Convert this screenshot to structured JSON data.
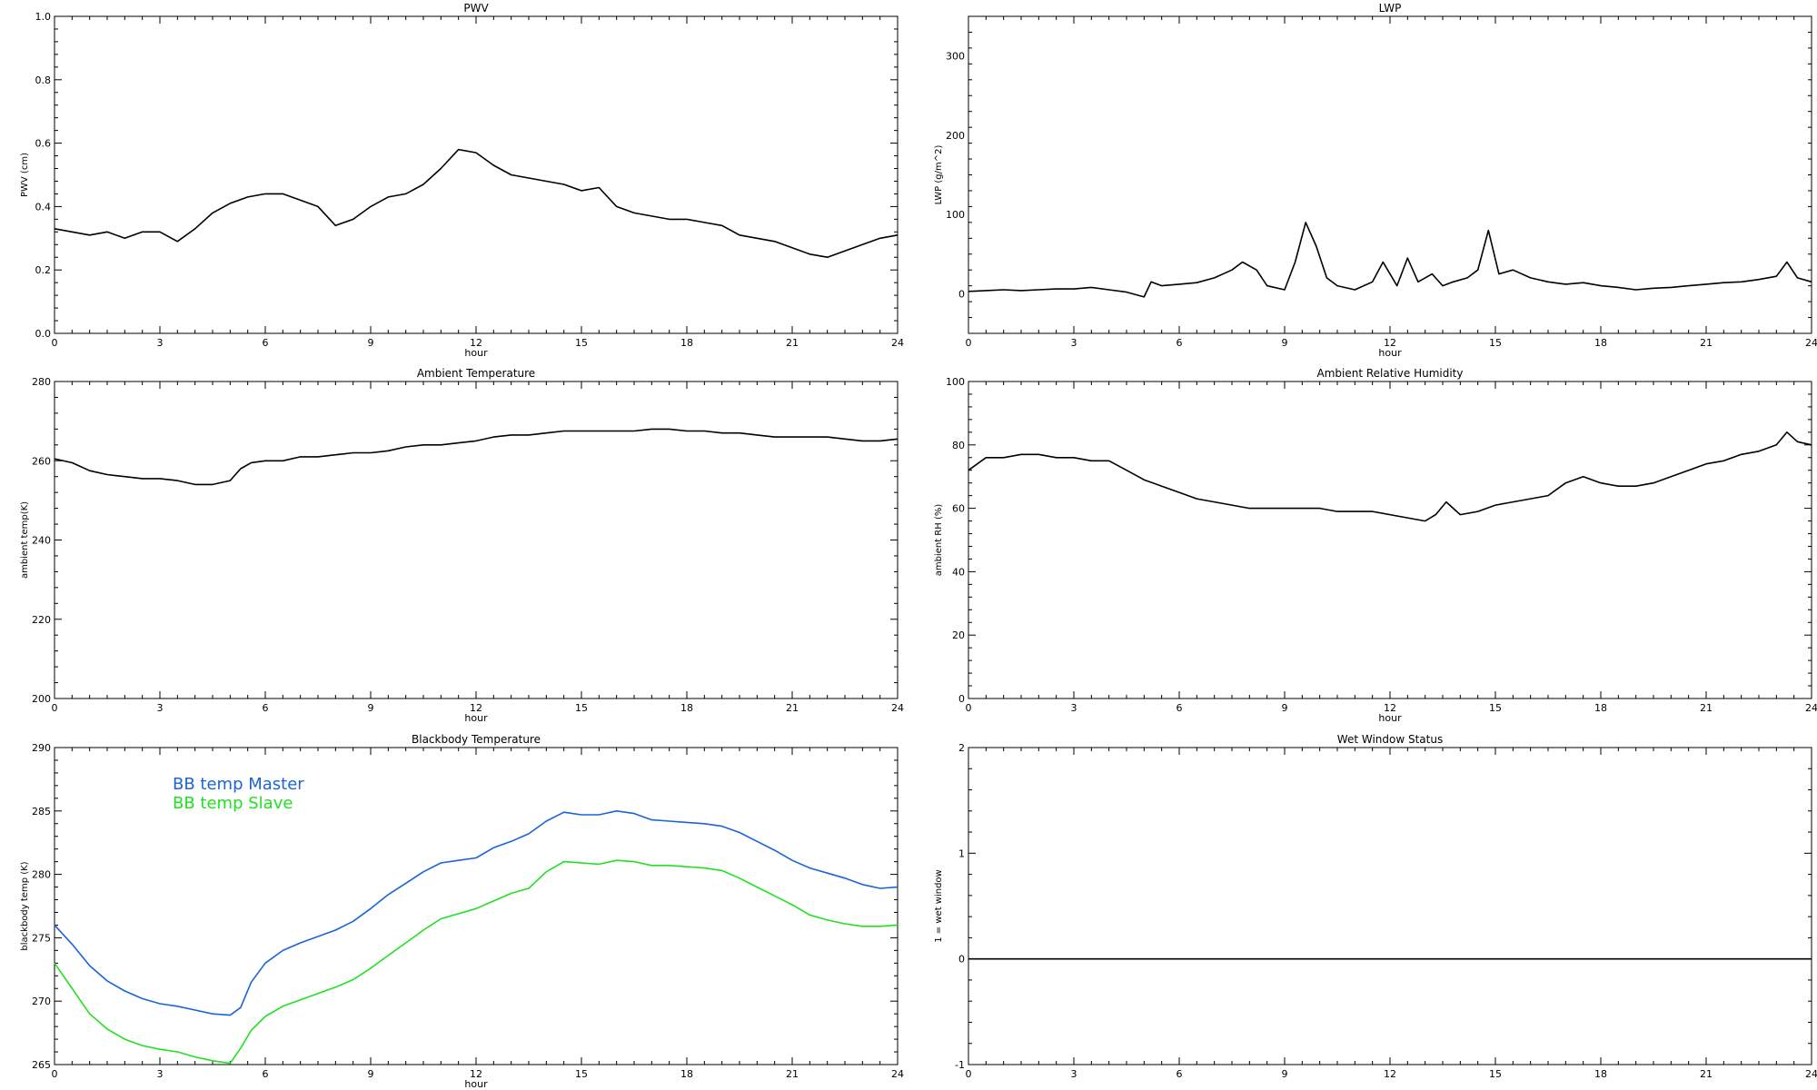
{
  "chart_data": [
    {
      "type": "line",
      "title": "PWV",
      "xlabel": "hour",
      "ylabel": "PWV (cm)",
      "xlim": [
        0,
        24
      ],
      "ylim": [
        0.0,
        1.0
      ],
      "xticks": [
        0,
        3,
        6,
        9,
        12,
        15,
        18,
        21,
        24
      ],
      "yticks": [
        "0.0",
        "0.2",
        "0.4",
        "0.6",
        "0.8",
        "1.0"
      ],
      "series": [
        {
          "color": "#000000",
          "x": [
            0,
            0.5,
            1,
            1.5,
            2,
            2.5,
            3,
            3.5,
            4,
            4.5,
            5,
            5.5,
            6,
            6.5,
            7,
            7.5,
            8,
            8.5,
            9,
            9.5,
            10,
            10.5,
            11,
            11.5,
            12,
            12.5,
            13,
            13.5,
            14,
            14.5,
            15,
            15.5,
            16,
            16.5,
            17,
            17.5,
            18,
            18.5,
            19,
            19.5,
            20,
            20.5,
            21,
            21.5,
            22,
            22.5,
            23,
            23.5,
            24
          ],
          "values": [
            0.33,
            0.32,
            0.31,
            0.32,
            0.3,
            0.32,
            0.32,
            0.29,
            0.33,
            0.38,
            0.41,
            0.43,
            0.44,
            0.44,
            0.42,
            0.4,
            0.34,
            0.36,
            0.4,
            0.43,
            0.44,
            0.47,
            0.52,
            0.58,
            0.57,
            0.53,
            0.5,
            0.49,
            0.48,
            0.47,
            0.45,
            0.46,
            0.4,
            0.38,
            0.37,
            0.36,
            0.36,
            0.35,
            0.34,
            0.31,
            0.3,
            0.29,
            0.27,
            0.25,
            0.24,
            0.26,
            0.28,
            0.3,
            0.31
          ]
        }
      ]
    },
    {
      "type": "line",
      "title": "LWP",
      "xlabel": "hour",
      "ylabel": "LWP (g/m^2)",
      "xlim": [
        0,
        24
      ],
      "ylim": [
        -50,
        350
      ],
      "xticks": [
        0,
        3,
        6,
        9,
        12,
        15,
        18,
        21,
        24
      ],
      "yticks": [
        "0",
        "100",
        "200",
        "300"
      ],
      "series": [
        {
          "color": "#000000",
          "x": [
            0,
            0.5,
            1,
            1.5,
            2,
            2.5,
            3,
            3.5,
            4,
            4.5,
            5,
            5.2,
            5.5,
            6,
            6.5,
            7,
            7.5,
            7.8,
            8.2,
            8.5,
            9,
            9.3,
            9.6,
            9.9,
            10.2,
            10.5,
            11,
            11.5,
            11.8,
            12.2,
            12.5,
            12.8,
            13.2,
            13.5,
            13.8,
            14.2,
            14.5,
            14.8,
            15.1,
            15.5,
            16,
            16.5,
            17,
            17.5,
            18,
            18.5,
            19,
            19.5,
            20,
            20.5,
            21,
            21.5,
            22,
            22.5,
            23,
            23.3,
            23.6,
            24
          ],
          "values": [
            3,
            4,
            5,
            4,
            5,
            6,
            6,
            8,
            5,
            2,
            -4,
            15,
            10,
            12,
            14,
            20,
            30,
            40,
            30,
            10,
            5,
            40,
            90,
            60,
            20,
            10,
            5,
            15,
            40,
            10,
            45,
            15,
            25,
            10,
            15,
            20,
            30,
            80,
            25,
            30,
            20,
            15,
            12,
            14,
            10,
            8,
            5,
            7,
            8,
            10,
            12,
            14,
            15,
            18,
            22,
            40,
            20,
            15
          ]
        }
      ]
    },
    {
      "type": "line",
      "title": "Ambient Temperature",
      "xlabel": "hour",
      "ylabel": "ambient temp(K)",
      "xlim": [
        0,
        24
      ],
      "ylim": [
        200,
        280
      ],
      "xticks": [
        0,
        3,
        6,
        9,
        12,
        15,
        18,
        21,
        24
      ],
      "yticks": [
        "200",
        "220",
        "240",
        "260",
        "280"
      ],
      "series": [
        {
          "color": "#000000",
          "x": [
            0,
            0.5,
            1,
            1.5,
            2,
            2.5,
            3,
            3.5,
            4,
            4.5,
            5,
            5.3,
            5.6,
            6,
            6.5,
            7,
            7.5,
            8,
            8.5,
            9,
            9.5,
            10,
            10.5,
            11,
            11.5,
            12,
            12.5,
            13,
            13.5,
            14,
            14.5,
            15,
            15.5,
            16,
            16.5,
            17,
            17.5,
            18,
            18.5,
            19,
            19.5,
            20,
            20.5,
            21,
            21.5,
            22,
            22.5,
            23,
            23.5,
            24
          ],
          "values": [
            260.5,
            259.5,
            257.5,
            256.5,
            256,
            255.5,
            255.5,
            255,
            254,
            254,
            255,
            258,
            259.5,
            260,
            260,
            261,
            261,
            261.5,
            262,
            262,
            262.5,
            263.5,
            264,
            264,
            264.5,
            265,
            266,
            266.5,
            266.5,
            267,
            267.5,
            267.5,
            267.5,
            267.5,
            267.5,
            268,
            268,
            267.5,
            267.5,
            267,
            267,
            266.5,
            266,
            266,
            266,
            266,
            265.5,
            265,
            265,
            265.5
          ]
        }
      ]
    },
    {
      "type": "line",
      "title": "Ambient Relative Humidity",
      "xlabel": "hour",
      "ylabel": "ambient RH (%)",
      "xlim": [
        0,
        24
      ],
      "ylim": [
        0,
        100
      ],
      "xticks": [
        0,
        3,
        6,
        9,
        12,
        15,
        18,
        21,
        24
      ],
      "yticks": [
        "0",
        "20",
        "40",
        "60",
        "80",
        "100"
      ],
      "series": [
        {
          "color": "#000000",
          "x": [
            0,
            0.5,
            1,
            1.5,
            2,
            2.5,
            3,
            3.5,
            4,
            4.5,
            5,
            5.5,
            6,
            6.5,
            7,
            7.5,
            8,
            8.5,
            9,
            9.5,
            10,
            10.5,
            11,
            11.5,
            12,
            12.5,
            13,
            13.3,
            13.6,
            14,
            14.5,
            15,
            15.5,
            16,
            16.5,
            17,
            17.5,
            18,
            18.5,
            19,
            19.5,
            20,
            20.5,
            21,
            21.5,
            22,
            22.5,
            23,
            23.3,
            23.6,
            24
          ],
          "values": [
            72,
            76,
            76,
            77,
            77,
            76,
            76,
            75,
            75,
            72,
            69,
            67,
            65,
            63,
            62,
            61,
            60,
            60,
            60,
            60,
            60,
            59,
            59,
            59,
            58,
            57,
            56,
            58,
            62,
            58,
            59,
            61,
            62,
            63,
            64,
            68,
            70,
            68,
            67,
            67,
            68,
            70,
            72,
            74,
            75,
            77,
            78,
            80,
            84,
            81,
            80
          ]
        }
      ]
    },
    {
      "type": "line",
      "title": "Blackbody Temperature",
      "xlabel": "hour",
      "ylabel": "blackbody temp (K)",
      "xlim": [
        0,
        24
      ],
      "ylim": [
        265,
        290
      ],
      "xticks": [
        0,
        3,
        6,
        9,
        12,
        15,
        18,
        21,
        24
      ],
      "yticks": [
        "265",
        "270",
        "275",
        "280",
        "285",
        "290"
      ],
      "legend": "top-left",
      "series": [
        {
          "name": "BB temp Master",
          "color": "#1a64d8",
          "x": [
            0,
            0.5,
            1,
            1.5,
            2,
            2.5,
            3,
            3.5,
            4,
            4.5,
            5,
            5.3,
            5.6,
            6,
            6.5,
            7,
            7.5,
            8,
            8.5,
            9,
            9.5,
            10,
            10.5,
            11,
            11.5,
            12,
            12.5,
            13,
            13.5,
            14,
            14.5,
            15,
            15.5,
            16,
            16.5,
            17,
            17.5,
            18,
            18.5,
            19,
            19.5,
            20,
            20.5,
            21,
            21.5,
            22,
            22.5,
            23,
            23.5,
            24
          ],
          "values": [
            276,
            274.5,
            272.8,
            271.6,
            270.8,
            270.2,
            269.8,
            269.6,
            269.3,
            269,
            268.9,
            269.5,
            271.5,
            273,
            274,
            274.6,
            275.1,
            275.6,
            276.3,
            277.3,
            278.4,
            279.3,
            280.2,
            280.9,
            281.1,
            281.3,
            282.1,
            282.6,
            283.2,
            284.2,
            284.9,
            284.7,
            284.7,
            285,
            284.8,
            284.3,
            284.2,
            284.1,
            284.0,
            283.8,
            283.3,
            282.6,
            281.9,
            281.1,
            280.5,
            280.1,
            279.7,
            279.2,
            278.9,
            279.0
          ]
        },
        {
          "name": "BB temp Slave",
          "color": "#22e022",
          "x": [
            0,
            0.5,
            1,
            1.5,
            2,
            2.5,
            3,
            3.5,
            4,
            4.5,
            5,
            5.3,
            5.6,
            6,
            6.5,
            7,
            7.5,
            8,
            8.5,
            9,
            9.5,
            10,
            10.5,
            11,
            11.5,
            12,
            12.5,
            13,
            13.5,
            14,
            14.5,
            15,
            15.5,
            16,
            16.5,
            17,
            17.5,
            18,
            18.5,
            19,
            19.5,
            20,
            20.5,
            21,
            21.5,
            22,
            22.5,
            23,
            23.5,
            24
          ],
          "values": [
            273,
            271,
            269,
            267.8,
            267,
            266.5,
            266.2,
            266,
            265.6,
            265.3,
            265.1,
            266.3,
            267.7,
            268.8,
            269.6,
            270.1,
            270.6,
            271.1,
            271.7,
            272.6,
            273.6,
            274.6,
            275.6,
            276.5,
            276.9,
            277.3,
            277.9,
            278.5,
            278.9,
            280.2,
            281.0,
            280.9,
            280.8,
            281.1,
            281.0,
            280.7,
            280.7,
            280.6,
            280.5,
            280.3,
            279.7,
            279.0,
            278.3,
            277.6,
            276.8,
            276.4,
            276.1,
            275.9,
            275.9,
            276.0
          ]
        }
      ]
    },
    {
      "type": "line",
      "title": "Wet Window Status",
      "xlabel": "",
      "ylabel": "1 = wet window",
      "xlim": [
        0,
        24
      ],
      "ylim": [
        -1,
        2
      ],
      "xticks": [
        0,
        3,
        6,
        9,
        12,
        15,
        18,
        21,
        24
      ],
      "yticks": [
        "-1",
        "0",
        "1",
        "2"
      ],
      "series": [
        {
          "color": "#000000",
          "x": [
            0,
            24
          ],
          "values": [
            0,
            0
          ]
        }
      ]
    }
  ]
}
